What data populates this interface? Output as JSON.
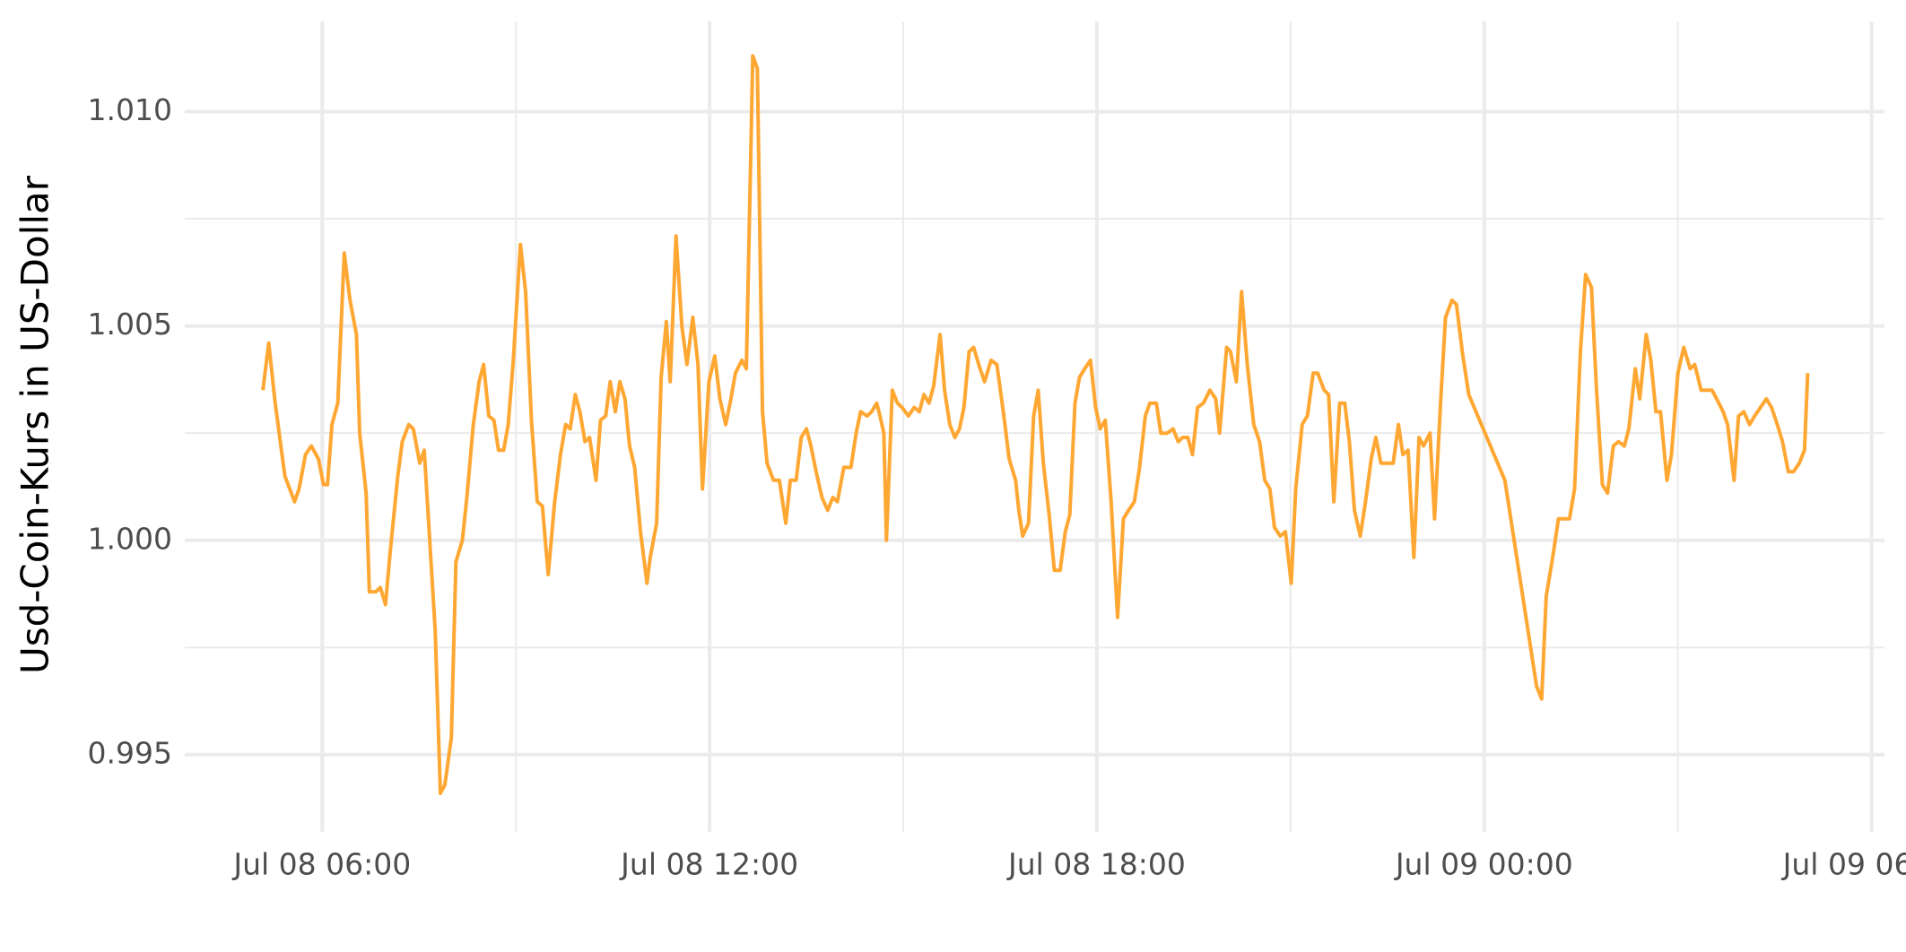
{
  "chart_data": {
    "type": "line",
    "y_label": "Usd-Coin-Kurs in US-Dollar",
    "xlim": [
      3.87,
      30.2
    ],
    "xticks": [
      {
        "value": 6,
        "label": "Jul 08 06:00"
      },
      {
        "value": 12,
        "label": "Jul 08 12:00"
      },
      {
        "value": 18,
        "label": "Jul 08 18:00"
      },
      {
        "value": 24,
        "label": "Jul 09 00:00"
      },
      {
        "value": 30,
        "label": "Jul 09 06:00"
      }
    ],
    "ylim": [
      0.9932,
      1.0121
    ],
    "yticks": [
      0.995,
      {
        "value": 1,
        "label": "1.000"
      },
      1.005,
      {
        "value": 1.01,
        "label": "1.010"
      }
    ],
    "grid": true,
    "color": "#ffa733",
    "x": [
      5.08,
      5.17,
      5.27,
      5.42,
      5.57,
      5.64,
      5.74,
      5.83,
      5.94,
      6.02,
      6.08,
      6.15,
      6.24,
      6.34,
      6.43,
      6.53,
      6.58,
      6.68,
      6.73,
      6.83,
      6.9,
      6.98,
      7.05,
      7.17,
      7.24,
      7.34,
      7.41,
      7.51,
      7.58,
      7.75,
      7.83,
      7.9,
      8.0,
      8.07,
      8.17,
      8.24,
      8.34,
      8.43,
      8.5,
      8.58,
      8.66,
      8.73,
      8.81,
      8.88,
      8.96,
      9.07,
      9.15,
      9.24,
      9.33,
      9.41,
      9.5,
      9.6,
      9.69,
      9.77,
      9.84,
      9.92,
      9.99,
      10.07,
      10.14,
      10.24,
      10.31,
      10.39,
      10.46,
      10.54,
      10.61,
      10.69,
      10.76,
      10.84,
      10.93,
      11.03,
      11.08,
      11.18,
      11.25,
      11.33,
      11.39,
      11.48,
      11.57,
      11.65,
      11.74,
      11.82,
      11.89,
      11.99,
      12.08,
      12.16,
      12.25,
      12.33,
      12.4,
      12.5,
      12.57,
      12.67,
      12.74,
      12.82,
      12.89,
      12.99,
      13.08,
      13.18,
      13.25,
      13.34,
      13.42,
      13.5,
      13.57,
      13.65,
      13.74,
      13.83,
      13.91,
      13.98,
      14.08,
      14.19,
      14.27,
      14.34,
      14.44,
      14.51,
      14.59,
      14.64,
      14.7,
      14.74,
      14.83,
      14.91,
      14.98,
      15.08,
      15.17,
      15.25,
      15.32,
      15.4,
      15.47,
      15.57,
      15.64,
      15.72,
      15.8,
      15.87,
      15.94,
      16.02,
      16.09,
      16.17,
      16.26,
      16.36,
      16.45,
      16.55,
      16.64,
      16.74,
      16.79,
      16.85,
      16.94,
      17.02,
      17.09,
      17.17,
      17.26,
      17.34,
      17.43,
      17.51,
      17.58,
      17.66,
      17.73,
      17.81,
      17.9,
      17.98,
      18.05,
      18.13,
      18.22,
      18.32,
      18.41,
      18.49,
      18.58,
      18.66,
      18.75,
      18.82,
      18.92,
      18.99,
      19.09,
      19.18,
      19.26,
      19.33,
      19.41,
      19.48,
      19.56,
      19.65,
      19.75,
      19.84,
      19.9,
      20.01,
      20.07,
      20.16,
      20.24,
      20.33,
      20.43,
      20.52,
      20.6,
      20.68,
      20.75,
      20.84,
      20.92,
      21.01,
      21.08,
      21.18,
      21.26,
      21.35,
      21.42,
      21.52,
      21.59,
      21.67,
      21.76,
      21.84,
      21.91,
      21.99,
      22.08,
      22.16,
      22.25,
      22.32,
      22.4,
      22.5,
      22.59,
      22.67,
      22.74,
      22.82,
      22.91,
      22.99,
      23.06,
      23.16,
      23.23,
      23.33,
      23.4,
      23.5,
      23.57,
      23.66,
      23.76,
      24.32,
      24.81,
      24.89,
      24.96,
      25.06,
      25.15,
      25.25,
      25.32,
      25.4,
      25.49,
      25.57,
      25.66,
      25.74,
      25.83,
      25.91,
      26.0,
      26.08,
      26.17,
      26.24,
      26.34,
      26.41,
      26.51,
      26.58,
      26.66,
      26.73,
      26.83,
      26.9,
      27.0,
      27.09,
      27.19,
      27.26,
      27.36,
      27.43,
      27.53,
      27.6,
      27.7,
      27.77,
      27.87,
      27.94,
      28.02,
      28.11,
      28.19,
      28.28,
      28.37,
      28.45,
      28.54,
      28.62,
      28.71,
      28.79,
      28.88,
      28.96,
      29.01
    ],
    "values": [
      1.0035,
      1.0046,
      1.0032,
      1.0015,
      1.0009,
      1.0012,
      1.002,
      1.0022,
      1.0019,
      1.0013,
      1.0013,
      1.0027,
      1.0032,
      1.0067,
      1.0056,
      1.0048,
      1.0025,
      1.0011,
      0.9988,
      0.9988,
      0.9989,
      0.9985,
      0.9997,
      1.0015,
      1.0023,
      1.0027,
      1.0026,
      1.0018,
      1.0021,
      0.9979,
      0.9941,
      0.9943,
      0.9954,
      0.9995,
      1.0,
      1.001,
      1.0027,
      1.0037,
      1.0041,
      1.0029,
      1.0028,
      1.0021,
      1.0021,
      1.0027,
      1.0042,
      1.0069,
      1.0058,
      1.0028,
      1.0009,
      1.0008,
      0.9992,
      1.0009,
      1.002,
      1.0027,
      1.0026,
      1.0034,
      1.003,
      1.0023,
      1.0024,
      1.0014,
      1.0028,
      1.0029,
      1.0037,
      1.003,
      1.0037,
      1.0033,
      1.0022,
      1.0017,
      1.0002,
      0.999,
      0.9996,
      1.0004,
      1.0038,
      1.0051,
      1.0037,
      1.0071,
      1.005,
      1.0041,
      1.0052,
      1.0041,
      1.0012,
      1.0037,
      1.0043,
      1.0033,
      1.0027,
      1.0033,
      1.0039,
      1.0042,
      1.004,
      1.0113,
      1.011,
      1.003,
      1.0018,
      1.0014,
      1.0014,
      1.0004,
      1.0014,
      1.0014,
      1.0024,
      1.0026,
      1.0022,
      1.0016,
      1.001,
      1.0007,
      1.001,
      1.0009,
      1.0017,
      1.0017,
      1.0025,
      1.003,
      1.0029,
      1.003,
      1.0032,
      1.0029,
      1.0025,
      1.0,
      1.0035,
      1.0032,
      1.0031,
      1.0029,
      1.0031,
      1.003,
      1.0034,
      1.0032,
      1.0036,
      1.0048,
      1.0035,
      1.0027,
      1.0024,
      1.0026,
      1.0031,
      1.0044,
      1.0045,
      1.0041,
      1.0037,
      1.0042,
      1.0041,
      1.003,
      1.0019,
      1.0014,
      1.0007,
      1.0001,
      1.0004,
      1.0029,
      1.0035,
      1.0018,
      1.0006,
      0.9993,
      0.9993,
      1.0002,
      1.0006,
      1.0032,
      1.0038,
      1.004,
      1.0042,
      1.0031,
      1.0026,
      1.0028,
      1.0009,
      0.9982,
      1.0005,
      1.0007,
      1.0009,
      1.0017,
      1.0029,
      1.0032,
      1.0032,
      1.0025,
      1.0025,
      1.0026,
      1.0023,
      1.0024,
      1.0024,
      1.002,
      1.0031,
      1.0032,
      1.0035,
      1.0033,
      1.0025,
      1.0045,
      1.0044,
      1.0037,
      1.0058,
      1.0041,
      1.0027,
      1.0023,
      1.0014,
      1.0012,
      1.0003,
      1.0001,
      1.0002,
      0.999,
      1.0012,
      1.0027,
      1.0029,
      1.0039,
      1.0039,
      1.0035,
      1.0034,
      1.0009,
      1.0032,
      1.0032,
      1.0023,
      1.0007,
      1.0001,
      1.0009,
      1.0019,
      1.0024,
      1.0018,
      1.0018,
      1.0018,
      1.0027,
      1.002,
      1.0021,
      0.9996,
      1.0024,
      1.0022,
      1.0025,
      1.0005,
      1.0034,
      1.0052,
      1.0056,
      1.0055,
      1.0044,
      1.0034,
      1.0014,
      0.9966,
      0.9963,
      0.9987,
      0.9996,
      1.0005,
      1.0005,
      1.0005,
      1.0012,
      1.0044,
      1.0062,
      1.0059,
      1.0035,
      1.0013,
      1.0011,
      1.0022,
      1.0023,
      1.0022,
      1.0026,
      1.004,
      1.0033,
      1.0048,
      1.0042,
      1.003,
      1.003,
      1.0014,
      1.002,
      1.0039,
      1.0045,
      1.004,
      1.0041,
      1.0035,
      1.0035,
      1.0035,
      1.0033,
      1.003,
      1.0027,
      1.0014,
      1.0029,
      1.003,
      1.0027,
      1.0029,
      1.0031,
      1.0033,
      1.0031,
      1.0027,
      1.0023,
      1.0016,
      1.0016,
      1.0018,
      1.0021,
      1.0039
    ]
  }
}
